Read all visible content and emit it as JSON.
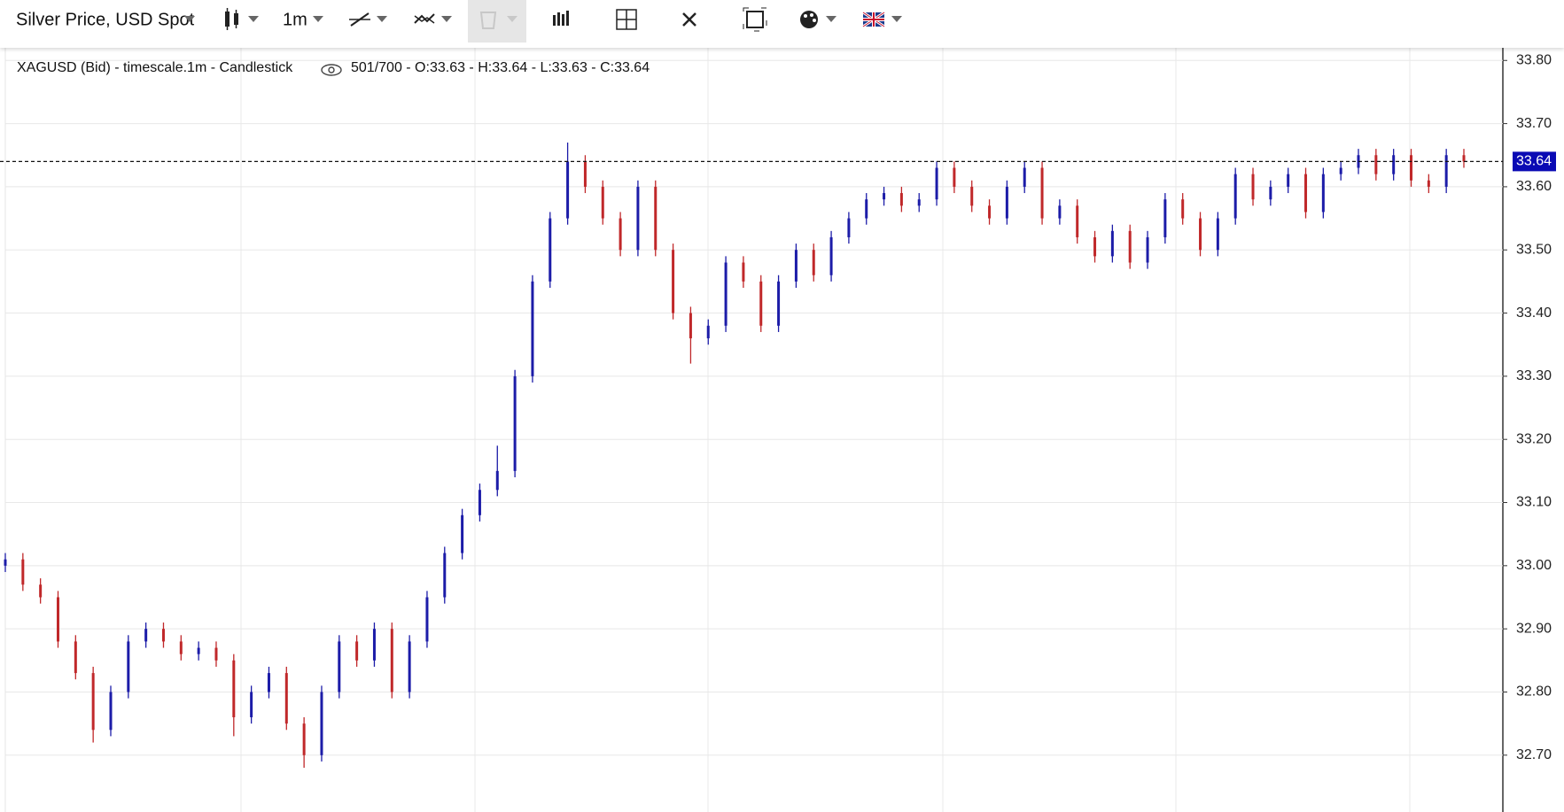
{
  "toolbar": {
    "symbol": "Silver Price, USD Spot",
    "interval": "1m"
  },
  "chart_data": {
    "type": "candlestick",
    "title": "XAGUSD (Bid) - timescale.1m - Candlestick",
    "info": "501/700 - O:33.63 - H:33.64 - L:33.63 - C:33.64",
    "up_color": "#1c1ca8",
    "down_color": "#c0282a",
    "last_price": 33.64,
    "last_price_color": "#0a0ab4",
    "grid": true,
    "ylim": [
      32.61,
      33.82
    ],
    "yticks": [
      {
        "value": 32.7,
        "label": "32.70"
      },
      {
        "value": 32.8,
        "label": "32.80"
      },
      {
        "value": 32.9,
        "label": "32.90"
      },
      {
        "value": 33.0,
        "label": "33.00"
      },
      {
        "value": 33.1,
        "label": "33.10"
      },
      {
        "value": 33.2,
        "label": "33.20"
      },
      {
        "value": 33.3,
        "label": "33.30"
      },
      {
        "value": 33.4,
        "label": "33.40"
      },
      {
        "value": 33.5,
        "label": "33.50"
      },
      {
        "value": 33.6,
        "label": "33.60"
      },
      {
        "value": 33.7,
        "label": "33.70"
      },
      {
        "value": 33.8,
        "label": "33.80"
      }
    ],
    "open": [
      33.0,
      33.01,
      32.97,
      32.95,
      32.88,
      32.83,
      32.74,
      32.8,
      32.88,
      32.9,
      32.88,
      32.86,
      32.87,
      32.85,
      32.76,
      32.8,
      32.83,
      32.75,
      32.7,
      32.8,
      32.88,
      32.85,
      32.9,
      32.8,
      32.88,
      32.95,
      33.02,
      33.08,
      33.12,
      33.15,
      33.3,
      33.45,
      33.55,
      33.64,
      33.6,
      33.55,
      33.5,
      33.6,
      33.5,
      33.4,
      33.36,
      33.38,
      33.48,
      33.45,
      33.38,
      33.45,
      33.5,
      33.46,
      33.52,
      33.55,
      33.58,
      33.59,
      33.57,
      33.58,
      33.63,
      33.6,
      33.57,
      33.55,
      33.6,
      33.63,
      33.55,
      33.57,
      33.52,
      33.49,
      33.53,
      33.48,
      33.52,
      33.58,
      33.55,
      33.5,
      33.55,
      33.62,
      33.58,
      33.6,
      33.62,
      33.56,
      33.62,
      33.63,
      33.65,
      33.62,
      33.65,
      33.61,
      33.6,
      33.65
    ],
    "high": [
      33.02,
      33.02,
      32.98,
      32.96,
      32.89,
      32.84,
      32.81,
      32.89,
      32.91,
      32.91,
      32.89,
      32.88,
      32.88,
      32.86,
      32.81,
      32.84,
      32.84,
      32.76,
      32.81,
      32.89,
      32.89,
      32.91,
      32.91,
      32.89,
      32.96,
      33.03,
      33.09,
      33.13,
      33.19,
      33.31,
      33.46,
      33.56,
      33.67,
      33.65,
      33.61,
      33.56,
      33.61,
      33.61,
      33.51,
      33.41,
      33.39,
      33.49,
      33.49,
      33.46,
      33.46,
      33.51,
      33.51,
      33.53,
      33.56,
      33.59,
      33.6,
      33.6,
      33.59,
      33.64,
      33.64,
      33.61,
      33.58,
      33.61,
      33.64,
      33.64,
      33.58,
      33.58,
      33.53,
      33.54,
      33.54,
      33.53,
      33.59,
      33.59,
      33.56,
      33.56,
      33.63,
      33.63,
      33.61,
      33.63,
      33.63,
      33.63,
      33.64,
      33.66,
      33.66,
      33.66,
      33.66,
      33.62,
      33.66,
      33.66
    ],
    "low": [
      32.99,
      32.96,
      32.94,
      32.87,
      32.82,
      32.72,
      32.73,
      32.79,
      32.87,
      32.87,
      32.85,
      32.85,
      32.84,
      32.73,
      32.75,
      32.79,
      32.74,
      32.68,
      32.69,
      32.79,
      32.84,
      32.84,
      32.79,
      32.79,
      32.87,
      32.94,
      33.01,
      33.07,
      33.11,
      33.14,
      33.29,
      33.44,
      33.54,
      33.59,
      33.54,
      33.49,
      33.49,
      33.49,
      33.39,
      33.32,
      33.35,
      33.37,
      33.44,
      33.37,
      33.37,
      33.44,
      33.45,
      33.45,
      33.51,
      33.54,
      33.57,
      33.56,
      33.56,
      33.57,
      33.59,
      33.56,
      33.54,
      33.54,
      33.59,
      33.54,
      33.54,
      33.51,
      33.48,
      33.48,
      33.47,
      33.47,
      33.51,
      33.54,
      33.49,
      33.49,
      33.54,
      33.57,
      33.57,
      33.59,
      33.55,
      33.55,
      33.61,
      33.62,
      33.61,
      33.61,
      33.6,
      33.59,
      33.59,
      33.63
    ],
    "close": [
      33.01,
      32.97,
      32.95,
      32.88,
      32.83,
      32.74,
      32.8,
      32.88,
      32.9,
      32.88,
      32.86,
      32.87,
      32.85,
      32.76,
      32.8,
      32.83,
      32.75,
      32.7,
      32.8,
      32.88,
      32.85,
      32.9,
      32.8,
      32.88,
      32.95,
      33.02,
      33.08,
      33.12,
      33.15,
      33.3,
      33.45,
      33.55,
      33.64,
      33.6,
      33.55,
      33.5,
      33.6,
      33.5,
      33.4,
      33.36,
      33.38,
      33.48,
      33.45,
      33.38,
      33.45,
      33.5,
      33.46,
      33.52,
      33.55,
      33.58,
      33.59,
      33.57,
      33.58,
      33.63,
      33.6,
      33.57,
      33.55,
      33.6,
      33.63,
      33.55,
      33.57,
      33.52,
      33.49,
      33.53,
      33.48,
      33.52,
      33.58,
      33.55,
      33.5,
      33.55,
      33.62,
      33.58,
      33.6,
      33.62,
      33.56,
      33.62,
      33.63,
      33.65,
      33.62,
      33.65,
      33.61,
      33.6,
      33.65,
      33.64
    ]
  }
}
